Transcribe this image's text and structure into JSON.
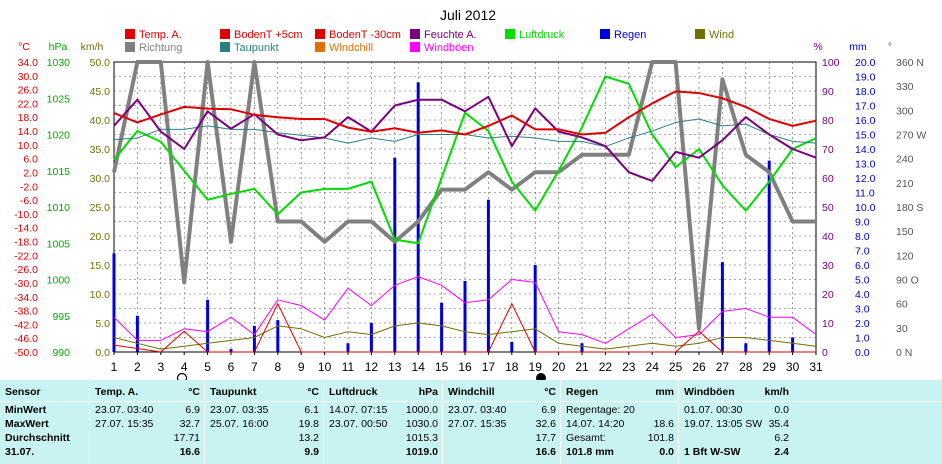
{
  "chart_data": {
    "type": "line",
    "title": "Juli 2012",
    "days": [
      1,
      2,
      3,
      4,
      5,
      6,
      7,
      8,
      9,
      10,
      11,
      12,
      13,
      14,
      15,
      16,
      17,
      18,
      19,
      20,
      21,
      22,
      23,
      24,
      25,
      26,
      27,
      28,
      29,
      30,
      31
    ],
    "axis_units": {
      "temp": "°C",
      "pressure": "hPa",
      "speed": "km/h",
      "humidity": "%",
      "rain": "mm",
      "direction": "°"
    },
    "axes": {
      "temp": {
        "min": -50,
        "max": 34,
        "ticks": [
          "34.0",
          "30.0",
          "26.0",
          "22.0",
          "18.0",
          "14.0",
          "10.0",
          "6.0",
          "2.0",
          "-2.0",
          "-6.0",
          "-10.0",
          "-14.0",
          "-18.0",
          "-22.0",
          "-26.0",
          "-30.0",
          "-34.0",
          "-38.0",
          "-42.0",
          "-46.0",
          "-50.0"
        ]
      },
      "pressure": {
        "min": 990,
        "max": 1030,
        "ticks": [
          "1030",
          "1025",
          "1020",
          "1015",
          "1010",
          "1005",
          "1000",
          "995",
          "990"
        ]
      },
      "speed": {
        "min": 0,
        "max": 50,
        "ticks": [
          "50.0",
          "45.0",
          "40.0",
          "35.0",
          "30.0",
          "25.0",
          "20.0",
          "15.0",
          "10.0",
          "5.0",
          "0.0"
        ]
      },
      "humidity": {
        "min": 0,
        "max": 100,
        "ticks": [
          "100",
          "90",
          "80",
          "70",
          "60",
          "50",
          "40",
          "30",
          "20",
          "10",
          "0"
        ]
      },
      "rain": {
        "min": 0,
        "max": 20,
        "ticks": [
          "20.0",
          "19.0",
          "18.0",
          "17.0",
          "16.0",
          "15.0",
          "14.0",
          "13.0",
          "12.0",
          "11.0",
          "10.0",
          "9.0",
          "8.0",
          "7.0",
          "6.0",
          "5.0",
          "4.0",
          "3.0",
          "2.0",
          "1.0",
          "0.0"
        ]
      },
      "direction": {
        "ticks": [
          "360 N",
          "330",
          "300",
          "270 W",
          "240",
          "210",
          "180 S",
          "150",
          "120",
          "90 O",
          "60",
          "30",
          "0 N"
        ]
      }
    },
    "legend": [
      {
        "label": "Temp. A.",
        "color": "#e00000"
      },
      {
        "label": "BodenT +5cm",
        "color": "#e00000"
      },
      {
        "label": "BodenT -30cm",
        "color": "#e00000"
      },
      {
        "label": "Feuchte A.",
        "color": "#7a0080"
      },
      {
        "label": "Luftdruck",
        "color": "#00dd00"
      },
      {
        "label": "Regen",
        "color": "#0000dd"
      },
      {
        "label": "Wind",
        "color": "#707000"
      },
      {
        "label": "Richtung",
        "color": "#808080"
      },
      {
        "label": "Taupunkt",
        "color": "#2a8080"
      },
      {
        "label": "Windchill",
        "color": "#e07000"
      },
      {
        "label": "Windböen",
        "color": "#ff00ff"
      }
    ],
    "series": [
      {
        "name": "Temp. A.",
        "axis": "temp",
        "color": "#e00000",
        "values": [
          19.2,
          16.5,
          18.8,
          21.0,
          20.5,
          20.3,
          18.7,
          18.0,
          17.5,
          17.5,
          15.0,
          13.8,
          14.8,
          13.5,
          14.2,
          13.0,
          15.5,
          18.5,
          14.5,
          14.5,
          13.0,
          13.5,
          18.0,
          22.0,
          25.5,
          25.0,
          23.5,
          21.0,
          17.5,
          15.5,
          17.0
        ]
      },
      {
        "name": "Feuchte A.",
        "axis": "humidity",
        "color": "#7a0080",
        "values": [
          78,
          87,
          76,
          70,
          83,
          77,
          82,
          75,
          73,
          74,
          81,
          76,
          85,
          87,
          87,
          83,
          88,
          71,
          84,
          76,
          74,
          71,
          62,
          59,
          69,
          67,
          73,
          81,
          75,
          70,
          67
        ]
      },
      {
        "name": "Taupunkt",
        "axis": "temp",
        "color": "#2a8080",
        "values": [
          11.5,
          12.0,
          14.5,
          14.5,
          15.5,
          14.5,
          14.5,
          13.5,
          12.8,
          12.0,
          10.5,
          12.0,
          11.0,
          13.0,
          13.0,
          13.0,
          12.0,
          12.5,
          12.0,
          11.0,
          11.0,
          9.5,
          12.0,
          14.0,
          16.5,
          17.5,
          15.5,
          16.0,
          13.0,
          11.0,
          10.5
        ]
      },
      {
        "name": "Luftdruck",
        "axis": "pressure",
        "color": "#00dd00",
        "values": [
          1016.5,
          1020.5,
          1019.0,
          1015.0,
          1011.0,
          1011.8,
          1012.5,
          1009.0,
          1012.0,
          1012.5,
          1012.5,
          1013.5,
          1005.5,
          1005.0,
          1014.0,
          1023.0,
          1020.5,
          1013.5,
          1009.5,
          1015.0,
          1021.0,
          1028.0,
          1027.0,
          1020.0,
          1015.5,
          1018.0,
          1013.0,
          1009.5,
          1013.5,
          1018.0,
          1019.5
        ]
      },
      {
        "name": "Richtung",
        "axis": "speed",
        "color": "#808080",
        "values": [
          31.0,
          50.0,
          50.0,
          12.0,
          50.0,
          19.0,
          50.0,
          22.5,
          22.5,
          19.0,
          22.5,
          22.5,
          19.0,
          22.5,
          28.0,
          28.0,
          31.0,
          28.0,
          31.0,
          31.0,
          34.0,
          34.0,
          34.0,
          50.0,
          50.0,
          4.0,
          47.0,
          34.0,
          31.0,
          22.5,
          22.5
        ]
      },
      {
        "name": "Windböen",
        "axis": "speed",
        "color": "#ff00ff",
        "values": [
          6.0,
          2.0,
          2.0,
          4.0,
          3.5,
          6.0,
          3.0,
          9.0,
          8.0,
          5.5,
          11.0,
          8.0,
          11.5,
          13.0,
          11.5,
          8.5,
          9.0,
          12.5,
          12.0,
          3.5,
          3.0,
          1.5,
          4.0,
          6.5,
          2.5,
          3.0,
          7.0,
          7.5,
          6.0,
          6.0,
          3.0
        ]
      },
      {
        "name": "Wind",
        "axis": "speed",
        "color": "#707000",
        "values": [
          2.5,
          1.5,
          0.5,
          1.0,
          1.5,
          2.0,
          2.5,
          4.5,
          4.0,
          2.5,
          3.5,
          3.0,
          4.5,
          5.0,
          4.5,
          3.5,
          3.0,
          3.5,
          4.0,
          1.5,
          1.0,
          0.5,
          1.0,
          1.5,
          1.0,
          1.5,
          2.5,
          2.5,
          2.0,
          1.5,
          1.0
        ]
      },
      {
        "name": "Windchill",
        "axis": "temp",
        "color": "#e07000",
        "values": [
          null,
          null,
          null,
          null,
          null,
          null,
          null,
          null,
          null,
          null,
          null,
          null,
          null,
          null,
          null,
          null,
          null,
          null,
          null,
          null,
          null,
          null,
          null,
          null,
          null,
          null,
          null,
          null,
          null,
          null,
          null
        ]
      },
      {
        "name": "BodenT +5cm",
        "axis": "temp",
        "color": "#e00000",
        "values": [
          -48,
          -49,
          -50,
          -44,
          -50,
          -50,
          -50,
          -36,
          -50,
          -50,
          -50,
          -50,
          -50,
          -50,
          -50,
          -50,
          -50,
          -36,
          -50,
          -50,
          -50,
          -50,
          -50,
          -50,
          -50,
          -44,
          -50,
          -50,
          -50,
          -50,
          -50
        ]
      },
      {
        "name": "Regen",
        "axis": "rain",
        "type": "bar",
        "color": "#0000dd",
        "values": [
          6.8,
          2.5,
          0,
          0,
          3.6,
          0.2,
          1.8,
          2.2,
          0,
          0,
          0.6,
          2.0,
          13.4,
          18.6,
          3.4,
          4.9,
          10.5,
          0.7,
          6.0,
          0,
          0.6,
          0,
          0,
          0,
          0,
          0,
          6.2,
          0.6,
          13.2,
          1.0,
          0
        ]
      }
    ]
  },
  "stats": {
    "headers": [
      {
        "label": "Sensor",
        "unit": ""
      },
      {
        "label": "Temp. A.",
        "unit": "°C"
      },
      {
        "label": "Taupunkt",
        "unit": "°C"
      },
      {
        "label": "Luftdruck",
        "unit": "hPa"
      },
      {
        "label": "Windchill",
        "unit": "°C"
      },
      {
        "label": "Regen",
        "unit": "mm"
      },
      {
        "label": "Windböen",
        "unit": "km/h"
      }
    ],
    "row_labels": [
      "MinWert",
      "MaxWert",
      "Durchschnitt",
      "31.07."
    ],
    "temp": [
      [
        "23.07. 03:40",
        "6.9"
      ],
      [
        "27.07. 15:35",
        "32.7"
      ],
      [
        "",
        "17.71"
      ],
      [
        "",
        "16.6"
      ]
    ],
    "taupunkt": [
      [
        "23.07. 03:35",
        "6.1"
      ],
      [
        "25.07. 16:00",
        "19.8"
      ],
      [
        "",
        "13.2"
      ],
      [
        "",
        "9.9"
      ]
    ],
    "luftdruck": [
      [
        "14.07. 07:15",
        "1000.0"
      ],
      [
        "23.07. 00:50",
        "1030.0"
      ],
      [
        "",
        "1015.3"
      ],
      [
        "",
        "1019.0"
      ]
    ],
    "windchill": [
      [
        "23.07. 03:40",
        "6.9"
      ],
      [
        "27.07. 15:35",
        "32.6"
      ],
      [
        "",
        "17.7"
      ],
      [
        "",
        "16.6"
      ]
    ],
    "regen": [
      [
        "Regentage: 20",
        ""
      ],
      [
        "14.07. 14:20",
        "18.6"
      ],
      [
        "Gesamt:",
        "101.8"
      ],
      [
        "101.8 mm",
        "0.0"
      ]
    ],
    "windboeen": [
      [
        "01.07. 00:30",
        "0.0"
      ],
      [
        "19.07. 13:05 SW",
        "35.4"
      ],
      [
        "",
        "6.2"
      ],
      [
        "1 Bft W-SW",
        "2.4"
      ]
    ]
  }
}
